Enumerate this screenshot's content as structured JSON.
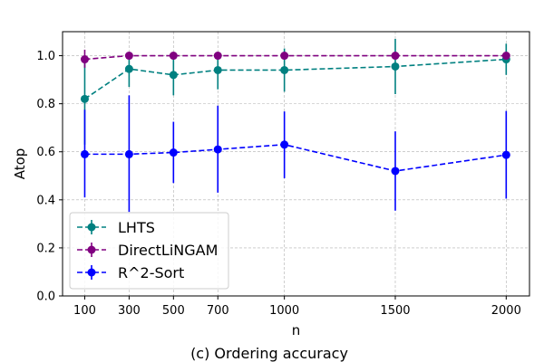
{
  "caption": "(c) Ordering accuracy",
  "chart_data": {
    "type": "line",
    "xlabel": "n",
    "ylabel": "Atop",
    "x": [
      100,
      300,
      500,
      700,
      1000,
      1500,
      2000
    ],
    "x_tick_labels": [
      "100",
      "300",
      "500",
      "700",
      "1000",
      "1500",
      "2000"
    ],
    "y_ticks": [
      0.0,
      0.2,
      0.4,
      0.6,
      0.8,
      1.0
    ],
    "y_tick_labels": [
      "0.0",
      "0.2",
      "0.4",
      "0.6",
      "0.8",
      "1.0"
    ],
    "xlim": [
      0,
      2105
    ],
    "ylim": [
      0.0,
      1.1
    ],
    "grid": true,
    "grid_style": "dashed",
    "legend_position": "lower-left",
    "series": [
      {
        "name": "LHTS",
        "color": "#008080",
        "values": [
          0.82,
          0.945,
          0.92,
          0.94,
          0.94,
          0.955,
          0.985
        ],
        "err_low": [
          0.63,
          0.87,
          0.835,
          0.86,
          0.85,
          0.84,
          0.92
        ],
        "err_high": [
          1.0,
          1.0,
          1.0,
          1.0,
          1.03,
          1.07,
          1.05
        ]
      },
      {
        "name": "DirectLiNGAM",
        "color": "#800080",
        "values": [
          0.985,
          1.0,
          1.0,
          1.0,
          1.0,
          1.0,
          1.0
        ],
        "err_low": [
          0.95,
          0.99,
          0.99,
          0.99,
          0.99,
          0.99,
          0.99
        ],
        "err_high": [
          1.025,
          1.01,
          1.01,
          1.01,
          1.01,
          1.01,
          1.01
        ]
      },
      {
        "name": "R^2-Sort",
        "color": "#0000ff",
        "values": [
          0.59,
          0.59,
          0.597,
          0.61,
          0.63,
          0.52,
          0.587
        ],
        "err_low": [
          0.41,
          0.35,
          0.47,
          0.43,
          0.49,
          0.355,
          0.405
        ],
        "err_high": [
          0.775,
          0.835,
          0.725,
          0.792,
          0.768,
          0.685,
          0.77
        ]
      }
    ]
  }
}
